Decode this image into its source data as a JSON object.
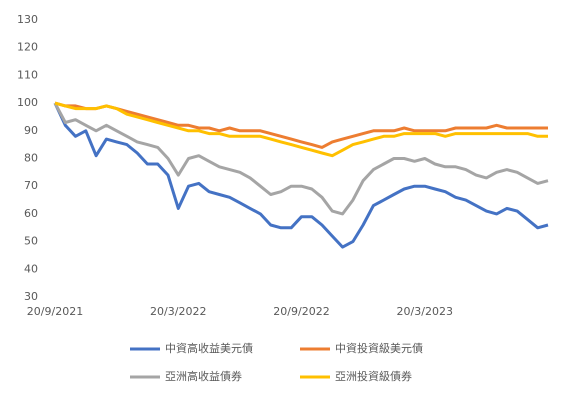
{
  "chart_data": {
    "type": "line",
    "categories": [
      "20/9/2021",
      null,
      null,
      null,
      null,
      null,
      null,
      null,
      null,
      null,
      null,
      null,
      "20/3/2022",
      null,
      null,
      null,
      null,
      null,
      null,
      null,
      null,
      null,
      null,
      null,
      "20/9/2022",
      null,
      null,
      null,
      null,
      null,
      null,
      null,
      null,
      null,
      null,
      null,
      "20/3/2023",
      null,
      null,
      null,
      null,
      null,
      null,
      null,
      null,
      null,
      null,
      null,
      null
    ],
    "series": [
      {
        "name": "中資高收益美元債",
        "color": "#4472c4",
        "values": [
          100,
          92,
          88,
          90,
          81,
          87,
          86,
          85,
          82,
          78,
          78,
          74,
          62,
          70,
          71,
          68,
          67,
          66,
          64,
          62,
          60,
          56,
          55,
          55,
          59,
          59,
          56,
          52,
          48,
          50,
          56,
          63,
          65,
          67,
          69,
          70,
          70,
          69,
          68,
          66,
          65,
          63,
          61,
          60,
          62,
          61,
          58,
          55,
          56
        ]
      },
      {
        "name": "中資投資級美元債",
        "color": "#ed7d31",
        "values": [
          100,
          99,
          99,
          98,
          98,
          99,
          98,
          97,
          96,
          95,
          94,
          93,
          92,
          92,
          91,
          91,
          90,
          91,
          90,
          90,
          90,
          89,
          88,
          87,
          86,
          85,
          84,
          86,
          87,
          88,
          89,
          90,
          90,
          90,
          91,
          90,
          90,
          90,
          90,
          91,
          91,
          91,
          91,
          92,
          91,
          91,
          91,
          91,
          91
        ]
      },
      {
        "name": "亞洲高收益債券",
        "color": "#a5a5a5",
        "values": [
          100,
          93,
          94,
          92,
          90,
          92,
          90,
          88,
          86,
          85,
          84,
          80,
          74,
          80,
          81,
          79,
          77,
          76,
          75,
          73,
          70,
          67,
          68,
          70,
          70,
          69,
          66,
          61,
          60,
          65,
          72,
          76,
          78,
          80,
          80,
          79,
          80,
          78,
          77,
          77,
          76,
          74,
          73,
          75,
          76,
          75,
          73,
          71,
          72
        ]
      },
      {
        "name": "亞洲投資級債券",
        "color": "#ffc000",
        "values": [
          100,
          99,
          98,
          98,
          98,
          99,
          98,
          96,
          95,
          94,
          93,
          92,
          91,
          90,
          90,
          89,
          89,
          88,
          88,
          88,
          88,
          87,
          86,
          85,
          84,
          83,
          82,
          81,
          83,
          85,
          86,
          87,
          88,
          88,
          89,
          89,
          89,
          89,
          88,
          89,
          89,
          89,
          89,
          89,
          89,
          89,
          89,
          88,
          88
        ]
      }
    ],
    "ylim": [
      30,
      130
    ],
    "yticks": [
      30,
      40,
      50,
      60,
      70,
      80,
      90,
      100,
      110,
      120,
      130
    ],
    "grid": false
  }
}
